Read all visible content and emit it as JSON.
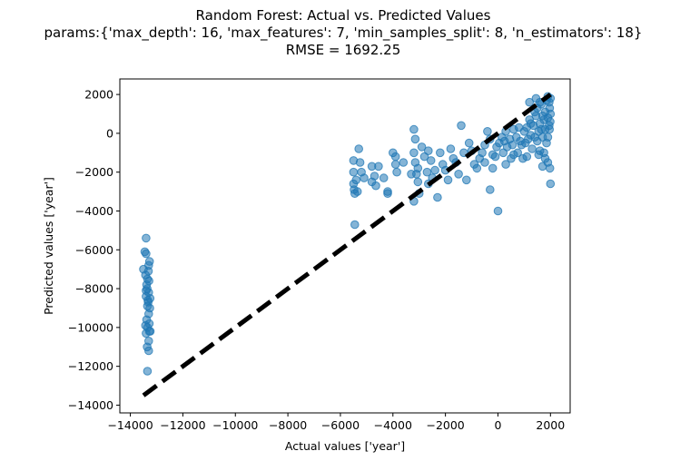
{
  "chart_data": {
    "type": "scatter",
    "title_lines": [
      "Random Forest: Actual vs. Predicted Values",
      "params:{'max_depth': 16, 'max_features': 7, 'min_samples_split': 8, 'n_estimators': 18}",
      "RMSE = 1692.25"
    ],
    "xlabel": "Actual values ['year']",
    "ylabel": "Predicted values ['year']",
    "xlim": [
      -14400,
      2750
    ],
    "ylim": [
      -14400,
      2800
    ],
    "xticks": [
      -14000,
      -12000,
      -10000,
      -8000,
      -6000,
      -4000,
      -2000,
      0,
      2000
    ],
    "xtick_labels": [
      "−14000",
      "−12000",
      "−10000",
      "−8000",
      "−6000",
      "−4000",
      "−2000",
      "0",
      "2000"
    ],
    "yticks": [
      2000,
      0,
      -2000,
      -4000,
      -6000,
      -8000,
      -10000,
      -12000,
      -14000
    ],
    "ytick_labels": [
      "2000",
      "0",
      "−2000",
      "−4000",
      "−6000",
      "−8000",
      "−10000",
      "−12000",
      "−14000"
    ],
    "grid": false,
    "point_color": "#1f77b4",
    "point_alpha": 0.55,
    "reference_line": {
      "style": "dashed",
      "color": "#000000",
      "from": [
        -13500,
        -13500
      ],
      "to": [
        2000,
        2000
      ]
    },
    "points": [
      [
        -13500,
        -7000
      ],
      [
        -13450,
        -6100
      ],
      [
        -13400,
        -6200
      ],
      [
        -13400,
        -5400
      ],
      [
        -13420,
        -7300
      ],
      [
        -13380,
        -7800
      ],
      [
        -13360,
        -8000
      ],
      [
        -13400,
        -8400
      ],
      [
        -13350,
        -8900
      ],
      [
        -13380,
        -9600
      ],
      [
        -13350,
        -10000
      ],
      [
        -13400,
        -10300
      ],
      [
        -13360,
        -11000
      ],
      [
        -13300,
        -11200
      ],
      [
        -13350,
        -12250
      ],
      [
        -13300,
        -10700
      ],
      [
        -13280,
        -10200
      ],
      [
        -13300,
        -9300
      ],
      [
        -13320,
        -8700
      ],
      [
        -13300,
        -8200
      ],
      [
        -13290,
        -7600
      ],
      [
        -13310,
        -7100
      ],
      [
        -13300,
        -6800
      ],
      [
        -13270,
        -6600
      ],
      [
        -13250,
        -8500
      ],
      [
        -13260,
        -9000
      ],
      [
        -13240,
        -10200
      ],
      [
        -13400,
        -8100
      ],
      [
        -13350,
        -7500
      ],
      [
        -13420,
        -9900
      ],
      [
        -13280,
        -9800
      ],
      [
        -13330,
        -8600
      ],
      [
        -5500,
        -1400
      ],
      [
        -5500,
        -2000
      ],
      [
        -5500,
        -2600
      ],
      [
        -5480,
        -2900
      ],
      [
        -5450,
        -3100
      ],
      [
        -5400,
        -2400
      ],
      [
        -5350,
        -3000
      ],
      [
        -5300,
        -800
      ],
      [
        -5250,
        -1500
      ],
      [
        -5200,
        -2000
      ],
      [
        -5450,
        -4700
      ],
      [
        -4800,
        -1700
      ],
      [
        -4700,
        -2200
      ],
      [
        -4650,
        -2700
      ],
      [
        -4800,
        -2500
      ],
      [
        -4550,
        -1700
      ],
      [
        -4200,
        -3000
      ],
      [
        -4200,
        -3100
      ],
      [
        -4000,
        -1000
      ],
      [
        -3900,
        -1200
      ],
      [
        -3900,
        -1600
      ],
      [
        -3850,
        -2000
      ],
      [
        -3200,
        200
      ],
      [
        -3150,
        -300
      ],
      [
        -3200,
        -1000
      ],
      [
        -3150,
        -1500
      ],
      [
        -3100,
        -2100
      ],
      [
        -3050,
        -2500
      ],
      [
        -3000,
        -3100
      ],
      [
        -3200,
        -3500
      ],
      [
        -3300,
        -2100
      ],
      [
        -2900,
        -700
      ],
      [
        -2800,
        -1200
      ],
      [
        -2700,
        -2000
      ],
      [
        -2650,
        -2600
      ],
      [
        -2550,
        -1400
      ],
      [
        -2500,
        -2300
      ],
      [
        -2400,
        -1900
      ],
      [
        -2300,
        -3300
      ],
      [
        -2200,
        -1000
      ],
      [
        -2100,
        -1600
      ],
      [
        -2000,
        -1900
      ],
      [
        -1800,
        -800
      ],
      [
        -1700,
        -1300
      ],
      [
        -1600,
        -1500
      ],
      [
        -1500,
        -2100
      ],
      [
        -1400,
        400
      ],
      [
        -1300,
        -1000
      ],
      [
        -1200,
        -2400
      ],
      [
        -1000,
        -900
      ],
      [
        -900,
        -1600
      ],
      [
        -800,
        -1800
      ],
      [
        -600,
        -1000
      ],
      [
        -500,
        -600
      ],
      [
        -500,
        -1500
      ],
      [
        -400,
        100
      ],
      [
        -300,
        -300
      ],
      [
        -300,
        -2900
      ],
      [
        -200,
        -1800
      ],
      [
        -200,
        -1100
      ],
      [
        -100,
        -1200
      ],
      [
        -50,
        -700
      ],
      [
        0,
        -4000
      ],
      [
        50,
        -500
      ],
      [
        150,
        -200
      ],
      [
        200,
        -1000
      ],
      [
        250,
        -400
      ],
      [
        300,
        100
      ],
      [
        350,
        -700
      ],
      [
        450,
        -300
      ],
      [
        500,
        -1300
      ],
      [
        550,
        -600
      ],
      [
        600,
        200
      ],
      [
        700,
        -200
      ],
      [
        750,
        -1000
      ],
      [
        800,
        300
      ],
      [
        900,
        -600
      ],
      [
        950,
        -1300
      ],
      [
        1000,
        100
      ],
      [
        1050,
        -500
      ],
      [
        1100,
        300
      ],
      [
        1150,
        -300
      ],
      [
        1200,
        700
      ],
      [
        1250,
        -100
      ],
      [
        1300,
        -800
      ],
      [
        1350,
        400
      ],
      [
        1400,
        -200
      ],
      [
        1450,
        900
      ],
      [
        1500,
        -400
      ],
      [
        1500,
        1300
      ],
      [
        1550,
        100
      ],
      [
        1600,
        -900
      ],
      [
        1600,
        500
      ],
      [
        1650,
        1500
      ],
      [
        1700,
        -200
      ],
      [
        1700,
        -1700
      ],
      [
        1750,
        700
      ],
      [
        1800,
        1100
      ],
      [
        1800,
        200
      ],
      [
        1850,
        -500
      ],
      [
        1900,
        1900
      ],
      [
        1900,
        800
      ],
      [
        1900,
        -1500
      ],
      [
        1950,
        400
      ],
      [
        1950,
        1600
      ],
      [
        2000,
        1000
      ],
      [
        2000,
        -2600
      ],
      [
        1980,
        -1800
      ],
      [
        1960,
        200
      ],
      [
        1970,
        1300
      ],
      [
        1990,
        600
      ],
      [
        2000,
        1800
      ],
      [
        300,
        -1600
      ],
      [
        600,
        -1100
      ],
      [
        850,
        -400
      ],
      [
        1100,
        -1200
      ],
      [
        1250,
        500
      ],
      [
        1400,
        1100
      ],
      [
        1550,
        -1100
      ],
      [
        1650,
        200
      ],
      [
        -2650,
        -900
      ],
      [
        -1900,
        -2400
      ],
      [
        -1100,
        -500
      ],
      [
        -700,
        -1300
      ],
      [
        -3600,
        -1500
      ],
      [
        -3050,
        -1800
      ],
      [
        -4350,
        -2300
      ],
      [
        -5100,
        -2300
      ],
      [
        1200,
        1600
      ],
      [
        1450,
        1800
      ],
      [
        1600,
        1600
      ],
      [
        1700,
        900
      ],
      [
        1850,
        1700
      ],
      [
        1750,
        -1000
      ],
      [
        1900,
        -200
      ],
      [
        1800,
        -1300
      ]
    ]
  }
}
